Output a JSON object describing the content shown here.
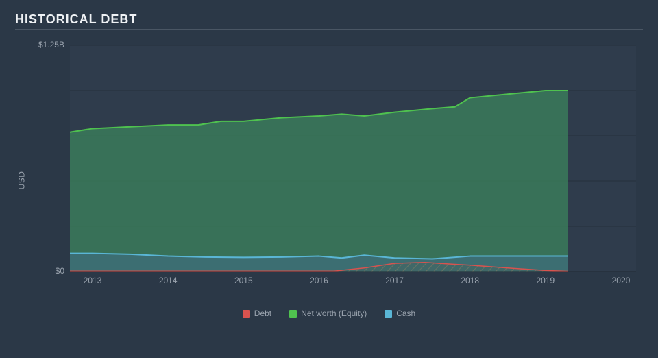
{
  "title": "HISTORICAL DEBT",
  "chart": {
    "type": "area",
    "background_color": "#2f3c4c",
    "page_background": "#2b3847",
    "grid_color": "#252f3b",
    "text_color": "#9aa3ae",
    "title_color": "#eef1f4",
    "title_fontsize": 18,
    "label_fontsize": 12,
    "y_axis_label": "USD",
    "x_years": [
      2013,
      2014,
      2015,
      2016,
      2017,
      2018,
      2019,
      2020
    ],
    "x_min": 2012.7,
    "x_max": 2020.2,
    "x_data_end": 2019.3,
    "y_min": 0,
    "y_max": 1.25,
    "y_ticks": [
      {
        "value": 1.25,
        "label": "$1.25B"
      },
      {
        "value": 0,
        "label": "$0"
      }
    ],
    "series": [
      {
        "key": "equity",
        "label": "Net worth (Equity)",
        "color_line": "#4fc24f",
        "color_fill": "#3a7a5a",
        "fill_opacity": 0.85,
        "line_width": 2,
        "points": [
          [
            2012.7,
            0.77
          ],
          [
            2013.0,
            0.79
          ],
          [
            2013.5,
            0.8
          ],
          [
            2014.0,
            0.81
          ],
          [
            2014.4,
            0.81
          ],
          [
            2014.7,
            0.83
          ],
          [
            2015.0,
            0.83
          ],
          [
            2015.5,
            0.85
          ],
          [
            2016.0,
            0.86
          ],
          [
            2016.3,
            0.87
          ],
          [
            2016.6,
            0.86
          ],
          [
            2017.0,
            0.88
          ],
          [
            2017.5,
            0.9
          ],
          [
            2017.8,
            0.91
          ],
          [
            2018.0,
            0.96
          ],
          [
            2018.5,
            0.98
          ],
          [
            2019.0,
            1.0
          ],
          [
            2019.3,
            1.0
          ]
        ]
      },
      {
        "key": "cash",
        "label": "Cash",
        "color_line": "#5ab6d6",
        "color_fill": "#3f6d7e",
        "fill_opacity": 0.7,
        "line_width": 2,
        "points": [
          [
            2012.7,
            0.1
          ],
          [
            2013.0,
            0.1
          ],
          [
            2013.5,
            0.095
          ],
          [
            2014.0,
            0.085
          ],
          [
            2014.5,
            0.08
          ],
          [
            2015.0,
            0.078
          ],
          [
            2015.5,
            0.08
          ],
          [
            2016.0,
            0.085
          ],
          [
            2016.3,
            0.075
          ],
          [
            2016.6,
            0.09
          ],
          [
            2017.0,
            0.075
          ],
          [
            2017.5,
            0.07
          ],
          [
            2018.0,
            0.085
          ],
          [
            2018.5,
            0.085
          ],
          [
            2019.0,
            0.085
          ],
          [
            2019.3,
            0.085
          ]
        ]
      },
      {
        "key": "debt",
        "label": "Debt",
        "color_line": "#d9534f",
        "color_fill": "#6a4a3e",
        "fill_opacity": 0.55,
        "line_width": 1.5,
        "hatched": true,
        "points": [
          [
            2012.7,
            0.003
          ],
          [
            2016.2,
            0.003
          ],
          [
            2016.6,
            0.02
          ],
          [
            2017.0,
            0.045
          ],
          [
            2017.4,
            0.05
          ],
          [
            2017.8,
            0.04
          ],
          [
            2018.0,
            0.035
          ],
          [
            2018.5,
            0.02
          ],
          [
            2019.0,
            0.006
          ],
          [
            2019.3,
            0.002
          ]
        ]
      }
    ],
    "legend_order": [
      "debt",
      "equity",
      "cash"
    ]
  }
}
